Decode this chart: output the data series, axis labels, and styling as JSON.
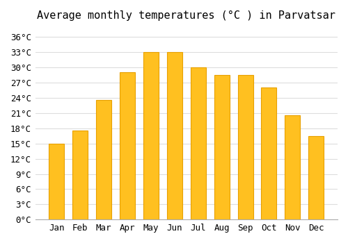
{
  "title": "Average monthly temperatures (°C ) in Parvatsar",
  "months": [
    "Jan",
    "Feb",
    "Mar",
    "Apr",
    "May",
    "Jun",
    "Jul",
    "Aug",
    "Sep",
    "Oct",
    "Nov",
    "Dec"
  ],
  "values": [
    15,
    17.5,
    23.5,
    29,
    33,
    33,
    30,
    28.5,
    28.5,
    26,
    20.5,
    16.5
  ],
  "bar_color": "#FFC020",
  "bar_edge_color": "#E8A000",
  "ylim": [
    0,
    38
  ],
  "yticks": [
    0,
    3,
    6,
    9,
    12,
    15,
    18,
    21,
    24,
    27,
    30,
    33,
    36
  ],
  "ytick_labels": [
    "0°C",
    "3°C",
    "6°C",
    "9°C",
    "12°C",
    "15°C",
    "18°C",
    "21°C",
    "24°C",
    "27°C",
    "30°C",
    "33°C",
    "36°C"
  ],
  "background_color": "#FFFFFF",
  "grid_color": "#DDDDDD",
  "title_fontsize": 11,
  "tick_fontsize": 9,
  "font_family": "monospace"
}
